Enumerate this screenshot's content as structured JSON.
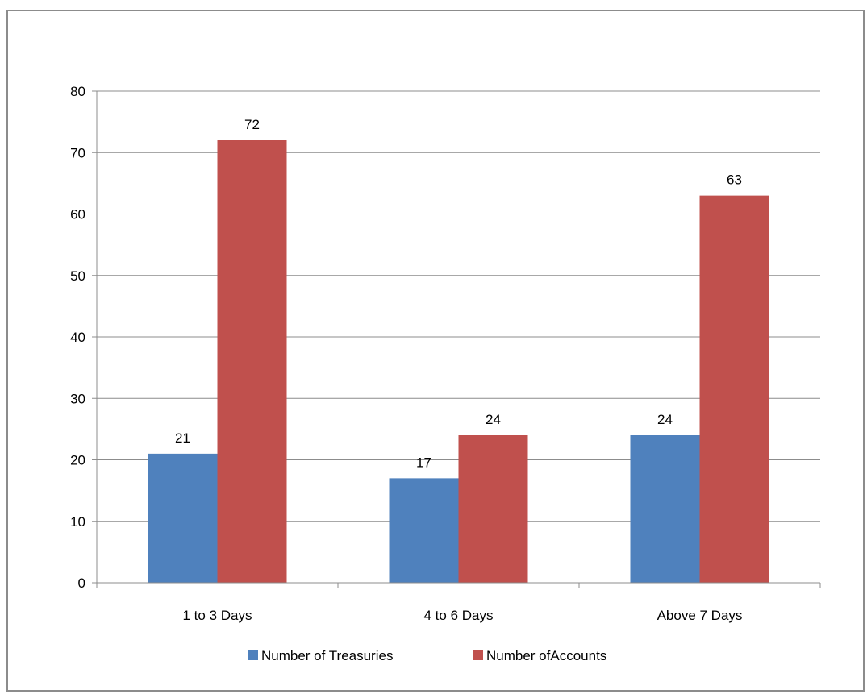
{
  "chart_data": {
    "type": "bar",
    "categories": [
      "1 to 3 Days",
      "4 to 6 Days",
      "Above 7 Days"
    ],
    "series": [
      {
        "name": "Number of Treasuries",
        "values": [
          21,
          17,
          24
        ],
        "color": "#4f81bd"
      },
      {
        "name": "Number ofAccounts",
        "values": [
          72,
          24,
          63
        ],
        "color": "#c0504d"
      }
    ],
    "ylim": [
      0,
      80
    ],
    "yticks": [
      0,
      10,
      20,
      30,
      40,
      50,
      60,
      70,
      80
    ],
    "grid": true,
    "legend_position": "bottom",
    "data_labels": true,
    "title": "",
    "xlabel": "",
    "ylabel": ""
  }
}
